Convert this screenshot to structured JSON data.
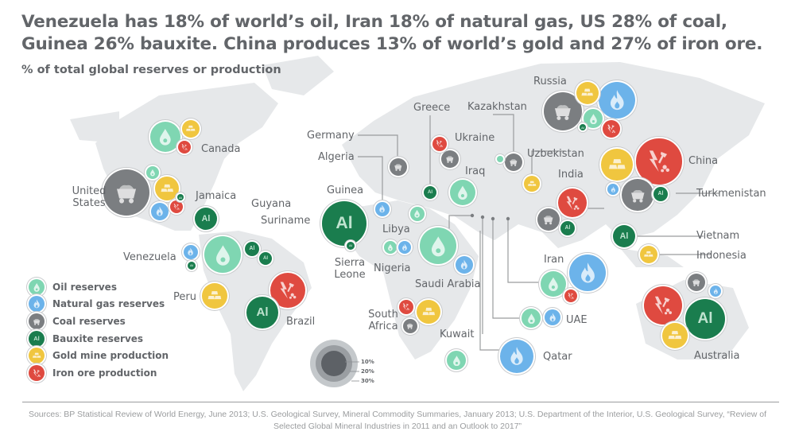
{
  "title": "Venezuela has 18% of world’s oil, Iran 18% of natural gas, US 28% of coal, Guinea 26% bauxite. China produces 13% of world’s gold and 27% of iron ore.",
  "subtitle": "% of total global reserves or production",
  "colors": {
    "oil": "#7fd6b2",
    "gas": "#6cb3ea",
    "coal": "#7b7e81",
    "bauxite": "#1a7d4e",
    "gold": "#f0c63f",
    "iron": "#df4a40",
    "map": "#e6e8ea"
  },
  "legend": [
    {
      "type": "oil",
      "label": "Oil reserves",
      "icon": "oil-drop-icon"
    },
    {
      "type": "gas",
      "label": "Natural gas reserves",
      "icon": "gas-flame-icon"
    },
    {
      "type": "coal",
      "label": "Coal reserves",
      "icon": "coal-cart-icon"
    },
    {
      "type": "bauxite",
      "label": "Bauxite reserves",
      "icon": "aluminium-icon"
    },
    {
      "type": "gold",
      "label": "Gold mine production",
      "icon": "gold-bars-icon"
    },
    {
      "type": "iron",
      "label": "Iron ore production",
      "icon": "iron-hammer-icon"
    }
  ],
  "bauxite_symbol": "Al",
  "size_legend": [
    "10%",
    "20%",
    "30%"
  ],
  "countries": [
    {
      "name": "Canada",
      "resources": [
        {
          "type": "oil",
          "pct": 12
        },
        {
          "type": "gold",
          "pct": 4
        },
        {
          "type": "iron",
          "pct": 2.1
        }
      ]
    },
    {
      "name": "United States",
      "resources": [
        {
          "type": "coal",
          "pct": 28
        },
        {
          "type": "oil",
          "pct": 2.1
        },
        {
          "type": "gold",
          "pct": 7.4
        },
        {
          "type": "gas",
          "pct": 4
        },
        {
          "type": "iron",
          "pct": 2.1
        },
        {
          "type": "bauxite",
          "pct": 0.5
        }
      ]
    },
    {
      "name": "Jamaica",
      "resources": [
        {
          "type": "bauxite",
          "pct": 6.5
        }
      ]
    },
    {
      "name": "Guyana",
      "resources": [
        {
          "type": "bauxite",
          "pct": 2.7
        }
      ]
    },
    {
      "name": "Suriname",
      "resources": [
        {
          "type": "bauxite",
          "pct": 2.1
        }
      ]
    },
    {
      "name": "Venezuela",
      "resources": [
        {
          "type": "oil",
          "pct": 18
        },
        {
          "type": "gas",
          "pct": 2.7
        },
        {
          "type": "bauxite",
          "pct": 0.8
        }
      ]
    },
    {
      "name": "Peru",
      "resources": [
        {
          "type": "gold",
          "pct": 8.5
        }
      ]
    },
    {
      "name": "Brazil",
      "resources": [
        {
          "type": "iron",
          "pct": 16.7
        },
        {
          "type": "bauxite",
          "pct": 13
        }
      ]
    },
    {
      "name": "Guinea",
      "resources": [
        {
          "type": "bauxite",
          "pct": 26
        }
      ]
    },
    {
      "name": "Sierra Leone",
      "resources": [
        {
          "type": "bauxite",
          "pct": 0.8
        }
      ]
    },
    {
      "name": "Algeria",
      "resources": [
        {
          "type": "gas",
          "pct": 2.7
        }
      ]
    },
    {
      "name": "Germany",
      "resources": [
        {
          "type": "coal",
          "pct": 4
        }
      ]
    },
    {
      "name": "Greece",
      "resources": [
        {
          "type": "bauxite",
          "pct": 2.1
        }
      ]
    },
    {
      "name": "Ukraine",
      "resources": [
        {
          "type": "iron",
          "pct": 2.7
        },
        {
          "type": "coal",
          "pct": 4
        }
      ]
    },
    {
      "name": "Libya",
      "resources": [
        {
          "type": "oil",
          "pct": 2.7
        }
      ]
    },
    {
      "name": "Nigeria",
      "resources": [
        {
          "type": "oil",
          "pct": 2.1
        },
        {
          "type": "gas",
          "pct": 2.1
        }
      ]
    },
    {
      "name": "Iraq",
      "resources": [
        {
          "type": "oil",
          "pct": 8.5
        }
      ]
    },
    {
      "name": "Saudi Arabia",
      "resources": [
        {
          "type": "oil",
          "pct": 17.5
        },
        {
          "type": "gas",
          "pct": 4
        }
      ]
    },
    {
      "name": "Kazakhstan",
      "resources": [
        {
          "type": "oil",
          "pct": 0.5
        },
        {
          "type": "coal",
          "pct": 4
        }
      ]
    },
    {
      "name": "Uzbekistan",
      "resources": [
        {
          "type": "gold",
          "pct": 3.3
        }
      ]
    },
    {
      "name": "India",
      "resources": [
        {
          "type": "iron",
          "pct": 10.7
        },
        {
          "type": "coal",
          "pct": 6.5
        },
        {
          "type": "bauxite",
          "pct": 2.7
        }
      ]
    },
    {
      "name": "Iran",
      "resources": [
        {
          "type": "gas",
          "pct": 18
        },
        {
          "type": "oil",
          "pct": 8.5
        },
        {
          "type": "iron",
          "pct": 2.1
        }
      ]
    },
    {
      "name": "UAE",
      "resources": [
        {
          "type": "oil",
          "pct": 4.8
        },
        {
          "type": "gas",
          "pct": 3.3
        }
      ]
    },
    {
      "name": "Qatar",
      "resources": [
        {
          "type": "gas",
          "pct": 14.6
        }
      ]
    },
    {
      "name": "Kuwait",
      "resources": [
        {
          "type": "oil",
          "pct": 4.8
        }
      ]
    },
    {
      "name": "South Africa",
      "resources": [
        {
          "type": "iron",
          "pct": 2.7
        },
        {
          "type": "gold",
          "pct": 7.4
        },
        {
          "type": "coal",
          "pct": 2.7
        }
      ]
    },
    {
      "name": "Russia",
      "resources": [
        {
          "type": "coal",
          "pct": 19
        },
        {
          "type": "gold",
          "pct": 6.5
        },
        {
          "type": "gas",
          "pct": 17.5
        },
        {
          "type": "oil",
          "pct": 4.8
        },
        {
          "type": "iron",
          "pct": 4
        },
        {
          "type": "bauxite",
          "pct": 0.5
        }
      ]
    },
    {
      "name": "China",
      "resources": [
        {
          "type": "iron",
          "pct": 27
        },
        {
          "type": "gold",
          "pct": 13
        },
        {
          "type": "coal",
          "pct": 13
        },
        {
          "type": "gas",
          "pct": 1.6
        }
      ]
    },
    {
      "name": "Turkmenistan",
      "resources": [
        {
          "type": "bauxite",
          "pct": 2.7
        }
      ]
    },
    {
      "name": "Vietnam",
      "resources": [
        {
          "type": "bauxite",
          "pct": 6.5
        }
      ]
    },
    {
      "name": "Indonesia",
      "resources": [
        {
          "type": "gold",
          "pct": 4
        }
      ]
    },
    {
      "name": "Australia",
      "resources": [
        {
          "type": "iron",
          "pct": 19
        },
        {
          "type": "bauxite",
          "pct": 20.7
        },
        {
          "type": "gold",
          "pct": 8.5
        },
        {
          "type": "coal",
          "pct": 4
        },
        {
          "type": "gas",
          "pct": 1.6
        }
      ]
    }
  ],
  "sources": "Sources: BP Statistical Review of World Energy, June 2013; U.S. Geological Survey, Mineral Commodity Summaries, January 2013; U.S. Department of the Interior, U.S. Geological Survey, “Review of Selected Global Mineral Industries in 2011 and an Outlook to 2017”"
}
